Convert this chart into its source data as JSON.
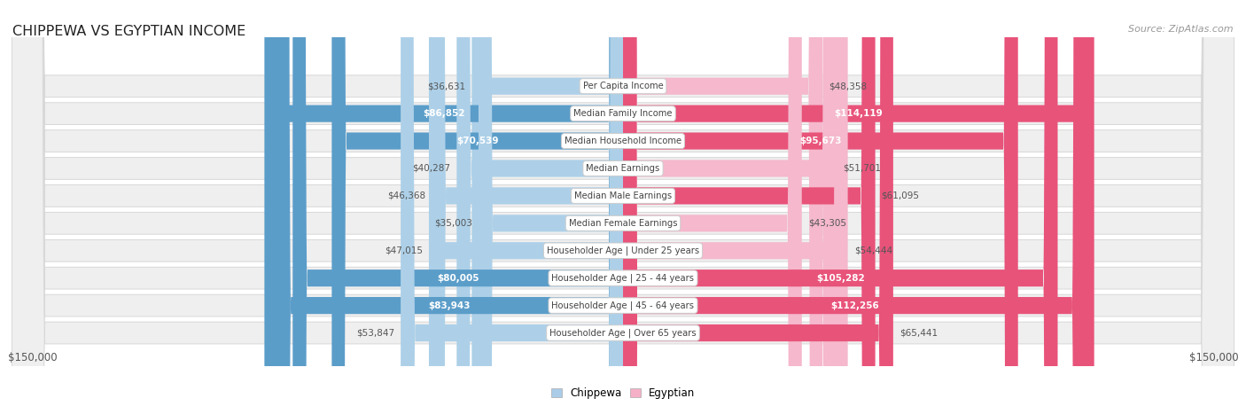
{
  "title": "CHIPPEWA VS EGYPTIAN INCOME",
  "source": "Source: ZipAtlas.com",
  "categories": [
    "Per Capita Income",
    "Median Family Income",
    "Median Household Income",
    "Median Earnings",
    "Median Male Earnings",
    "Median Female Earnings",
    "Householder Age | Under 25 years",
    "Householder Age | 25 - 44 years",
    "Householder Age | 45 - 64 years",
    "Householder Age | Over 65 years"
  ],
  "chippewa": [
    36631,
    86852,
    70539,
    40287,
    46368,
    35003,
    47015,
    80005,
    83943,
    53847
  ],
  "egyptian": [
    48358,
    114119,
    95673,
    51701,
    61095,
    43305,
    54444,
    105282,
    112256,
    65441
  ],
  "chippewa_labels": [
    "$36,631",
    "$86,852",
    "$70,539",
    "$40,287",
    "$46,368",
    "$35,003",
    "$47,015",
    "$80,005",
    "$83,943",
    "$53,847"
  ],
  "egyptian_labels": [
    "$48,358",
    "$114,119",
    "$95,673",
    "$51,701",
    "$61,095",
    "$43,305",
    "$54,444",
    "$105,282",
    "$112,256",
    "$65,441"
  ],
  "chippewa_label_inside": [
    false,
    true,
    true,
    false,
    false,
    false,
    false,
    true,
    true,
    false
  ],
  "egyptian_label_inside": [
    false,
    true,
    true,
    false,
    false,
    false,
    false,
    true,
    true,
    false
  ],
  "max_val": 150000,
  "color_chippewa_light": "#add0e8",
  "color_chippewa_dark": "#5b9dc9",
  "color_egyptian_light": "#f5b8cc",
  "color_egyptian_dark": "#e8537a",
  "chippewa_dark_rows": [
    1,
    3,
    5,
    7,
    8
  ],
  "egyptian_dark_rows": [
    1,
    3,
    5,
    7,
    8
  ],
  "bg_row": "#f0f0f0",
  "legend_chippewa": "Chippewa",
  "legend_egyptian": "Egyptian",
  "xlabel_left": "$150,000",
  "xlabel_right": "$150,000"
}
